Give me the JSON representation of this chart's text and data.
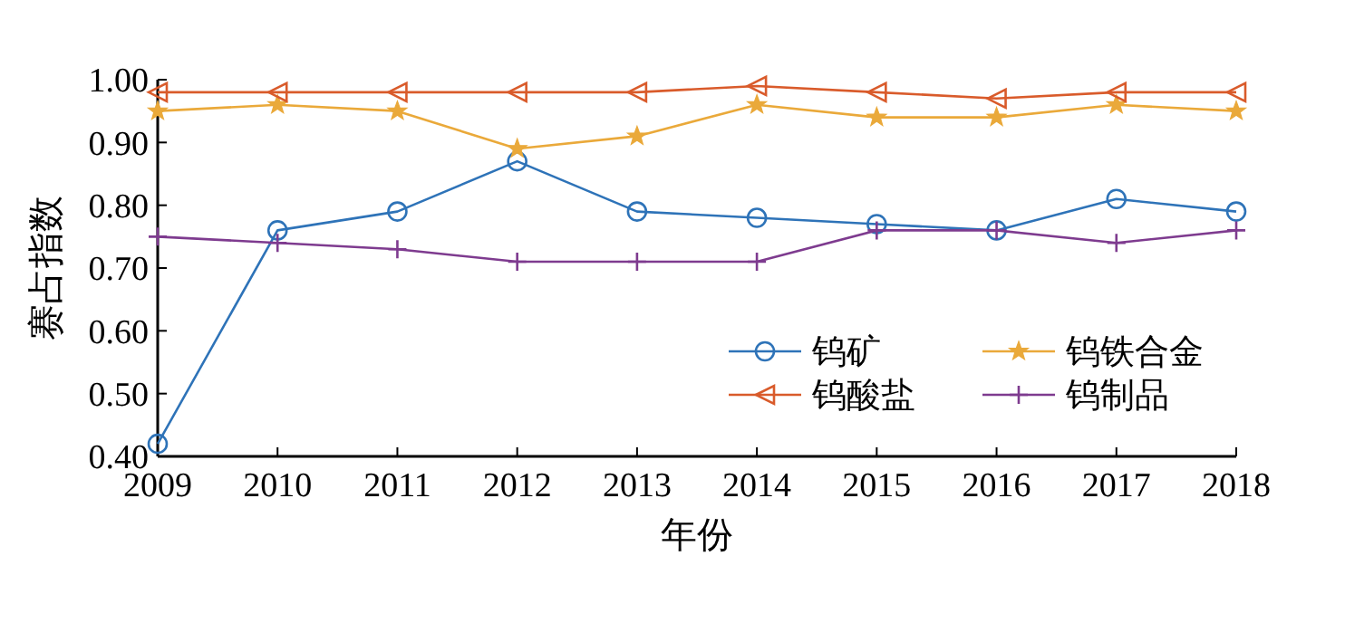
{
  "chart_data": {
    "type": "line",
    "xlabel": "年份",
    "ylabel": "赛占指数",
    "x": [
      2009,
      2010,
      2011,
      2012,
      2013,
      2014,
      2015,
      2016,
      2017,
      2018
    ],
    "xlim": [
      2009,
      2018
    ],
    "xticks": [
      2009,
      2010,
      2011,
      2012,
      2013,
      2014,
      2015,
      2016,
      2017,
      2018
    ],
    "ylim": [
      0.4,
      1.0
    ],
    "yticks": [
      {
        "value": 0.4,
        "label": "0.40"
      },
      {
        "value": 0.5,
        "label": "0.50"
      },
      {
        "value": 0.6,
        "label": "0.60"
      },
      {
        "value": 0.7,
        "label": "0.70"
      },
      {
        "value": 0.8,
        "label": "0.80"
      },
      {
        "value": 0.9,
        "label": "0.90"
      },
      {
        "value": 1.0,
        "label": "1.00"
      }
    ],
    "grid": false,
    "legend": "bottom right",
    "series": [
      {
        "name": "钨矿",
        "color": "#2e73b8",
        "marker": "circle",
        "values": [
          0.42,
          0.76,
          0.79,
          0.87,
          0.79,
          0.78,
          0.77,
          0.76,
          0.81,
          0.79
        ]
      },
      {
        "name": "钨铁合金",
        "color": "#eaa93a",
        "marker": "star",
        "values": [
          0.95,
          0.96,
          0.95,
          0.89,
          0.91,
          0.96,
          0.94,
          0.94,
          0.96,
          0.95
        ]
      },
      {
        "name": "钨酸盐",
        "color": "#d95b2b",
        "marker": "triangle",
        "values": [
          0.98,
          0.98,
          0.98,
          0.98,
          0.98,
          0.99,
          0.98,
          0.97,
          0.98,
          0.98
        ]
      },
      {
        "name": "钨制品",
        "color": "#7e3b8f",
        "marker": "cross",
        "values": [
          0.75,
          0.74,
          0.73,
          0.71,
          0.71,
          0.71,
          0.76,
          0.76,
          0.74,
          0.76
        ]
      }
    ]
  }
}
